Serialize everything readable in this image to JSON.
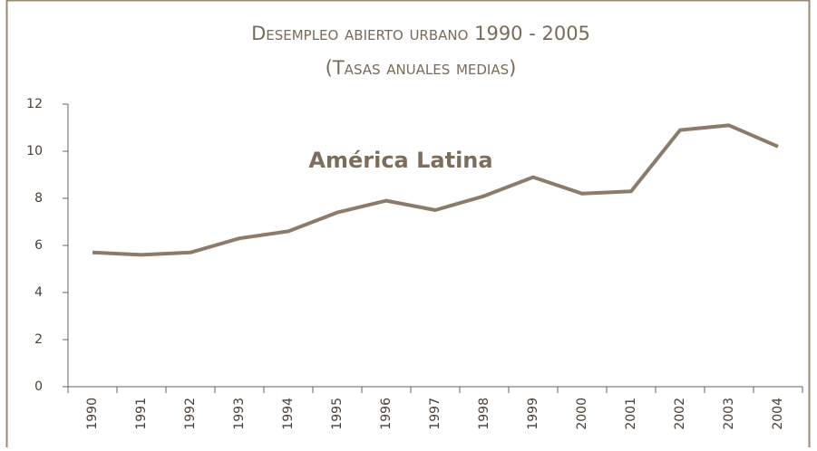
{
  "chart_data": {
    "type": "line",
    "title": "Desempleo abierto urbano 1990 - 2005",
    "subtitle": "(Tasas anuales medias)",
    "annotation": "América Latina",
    "categories": [
      "1990",
      "1991",
      "1992",
      "1993",
      "1994",
      "1995",
      "1996",
      "1997",
      "1998",
      "1999",
      "2000",
      "2001",
      "2002",
      "2003",
      "2004"
    ],
    "values": [
      5.7,
      5.6,
      5.7,
      6.3,
      6.6,
      7.4,
      7.9,
      7.5,
      8.1,
      8.9,
      8.2,
      8.3,
      10.9,
      11.1,
      10.2
    ],
    "color": "#8c7b6a",
    "ylim": [
      0,
      12
    ],
    "yticks": [
      0,
      2,
      4,
      6,
      8,
      10,
      12
    ],
    "grid": false
  }
}
